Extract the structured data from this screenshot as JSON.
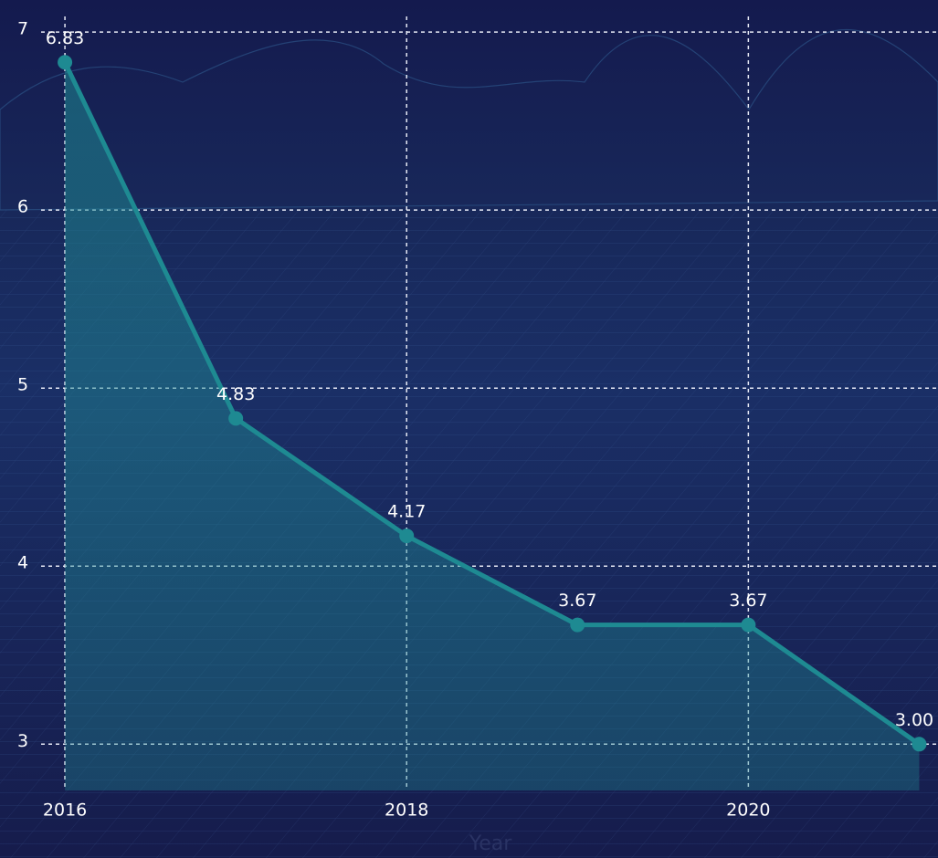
{
  "chart_data": {
    "type": "area",
    "x_label": "Year",
    "x": [
      2016,
      2017,
      2018,
      2019,
      2020,
      2021
    ],
    "series": [
      {
        "color": "#1e8a92",
        "values": [
          6.83,
          4.83,
          4.17,
          3.67,
          3.67,
          3.0
        ],
        "value_labels": [
          "6.83",
          "4.83",
          "4.17",
          "3.67",
          "3.67",
          "3.00"
        ]
      }
    ],
    "xlim": [
      2015.62,
      2021.11
    ],
    "xticks": [
      2016,
      2018,
      2020
    ],
    "ylim": [
      2.74,
      7.18
    ],
    "yticks": [
      3,
      4,
      5,
      6,
      7
    ],
    "grid": true
  }
}
